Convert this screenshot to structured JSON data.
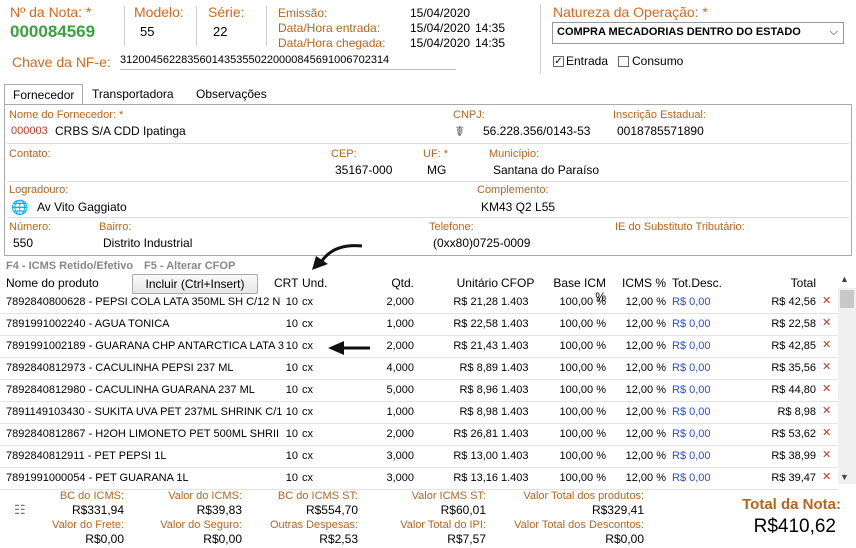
{
  "header": {
    "nota_label": "Nº da Nota: *",
    "nota_value": "000084569",
    "modelo_label": "Modelo:",
    "modelo_value": "55",
    "serie_label": "Série:",
    "serie_value": "22",
    "emissao_label": "Emissão:",
    "emissao_value": "15/04/2020",
    "entrada_label": "Data/Hora entrada:",
    "entrada_date": "15/04/2020",
    "entrada_time": "14:35",
    "chegada_label": "Data/Hora chegada:",
    "chegada_date": "15/04/2020",
    "chegada_time": "14:35",
    "chave_label": "Chave da NF-e:",
    "chave_value": "31200456228356014353550220000845691006702314",
    "natureza_label": "Natureza da Operação: *",
    "natureza_value": "COMPRA MECADORIAS DENTRO DO ESTADO",
    "entrada_chk_label": "Entrada",
    "consumo_chk_label": "Consumo"
  },
  "tabs": [
    "Fornecedor",
    "Transportadora",
    "Observações"
  ],
  "fornecedor": {
    "nome_label": "Nome do Fornecedor: *",
    "code": "000003",
    "nome": "CRBS S/A CDD Ipatinga",
    "cnpj_label": "CNPJ:",
    "cnpj": "56.228.356/0143-53",
    "ie_label": "Inscrição Estadual:",
    "ie": "0018785571890",
    "contato_label": "Contato:",
    "cep_label": "CEP:",
    "cep": "35167-000",
    "uf_label": "UF: *",
    "uf": "MG",
    "municipio_label": "Município:",
    "municipio": "Santana do Paraíso",
    "logradouro_label": "Logradouro:",
    "logradouro": "Av Vito Gaggiato",
    "complemento_label": "Complemento:",
    "complemento": "KM43 Q2 L55",
    "numero_label": "Número:",
    "numero": "550",
    "bairro_label": "Bairro:",
    "bairro": "Distrito Industrial",
    "telefone_label": "Telefone:",
    "telefone": "(0xx80)0725-0009",
    "ie_sub_label": "IE do Substituto Tributário:"
  },
  "shortcuts": {
    "f4": "F4 - ICMS Retido/Efetivo",
    "f5": "F5 - Alterar CFOP",
    "incluir": "Incluir (Ctrl+Insert)"
  },
  "columns": {
    "nome": "Nome do produto",
    "crt": "CRT",
    "und": "Und.",
    "qtd": "Qtd.",
    "unit": "Unitário",
    "cfop": "CFOP",
    "base": "Base ICM %",
    "icms": "ICMS %",
    "desc": "Tot.Desc.",
    "total": "Total"
  },
  "rows": [
    {
      "nome": "7892840800628 - PEPSI COLA LATA 350ML SH C/12 N",
      "crt": "10",
      "und": "cx",
      "qtd": "2,000",
      "unit": "R$ 21,28",
      "cfop": "1.403",
      "base": "100,00 %",
      "icms": "12,00 %",
      "desc": "R$ 0,00",
      "total": "R$ 42,56"
    },
    {
      "nome": "7891991002240 - AGUA TONICA",
      "crt": "10",
      "und": "cx",
      "qtd": "1,000",
      "unit": "R$ 22,58",
      "cfop": "1.403",
      "base": "100,00 %",
      "icms": "12,00 %",
      "desc": "R$ 0,00",
      "total": "R$ 22,58"
    },
    {
      "nome": "7891991002189 - GUARANA CHP ANTARCTICA LATA 3",
      "crt": "10",
      "und": "cx",
      "qtd": "2,000",
      "unit": "R$ 21,43",
      "cfop": "1.403",
      "base": "100,00 %",
      "icms": "12,00 %",
      "desc": "R$ 0,00",
      "total": "R$ 42,85"
    },
    {
      "nome": "7892840812973 - CACULINHA PEPSI 237 ML",
      "crt": "10",
      "und": "cx",
      "qtd": "4,000",
      "unit": "R$ 8,89",
      "cfop": "1.403",
      "base": "100,00 %",
      "icms": "12,00 %",
      "desc": "R$ 0,00",
      "total": "R$ 35,56"
    },
    {
      "nome": "7892840812980 - CACULINHA GUARANA 237 ML",
      "crt": "10",
      "und": "cx",
      "qtd": "5,000",
      "unit": "R$ 8,96",
      "cfop": "1.403",
      "base": "100,00 %",
      "icms": "12,00 %",
      "desc": "R$ 0,00",
      "total": "R$ 44,80"
    },
    {
      "nome": "7891149103430 - SUKITA UVA PET 237ML SHRINK C/1",
      "crt": "10",
      "und": "cx",
      "qtd": "1,000",
      "unit": "R$ 8,98",
      "cfop": "1.403",
      "base": "100,00 %",
      "icms": "12,00 %",
      "desc": "R$ 0,00",
      "total": "R$ 8,98"
    },
    {
      "nome": "7892840812867 - H2OH LIMONETO PET 500ML SHRII",
      "crt": "10",
      "und": "cx",
      "qtd": "2,000",
      "unit": "R$ 26,81",
      "cfop": "1.403",
      "base": "100,00 %",
      "icms": "12,00 %",
      "desc": "R$ 0,00",
      "total": "R$ 53,62"
    },
    {
      "nome": "7892840812911 - PET PEPSI 1L",
      "crt": "10",
      "und": "cx",
      "qtd": "3,000",
      "unit": "R$ 13,00",
      "cfop": "1.403",
      "base": "100,00 %",
      "icms": "12,00 %",
      "desc": "R$ 0,00",
      "total": "R$ 38,99"
    },
    {
      "nome": "7891991000054 - PET GUARANA 1L",
      "crt": "10",
      "und": "cx",
      "qtd": "3,000",
      "unit": "R$ 13,16",
      "cfop": "1.403",
      "base": "100,00 %",
      "icms": "12,00 %",
      "desc": "R$ 0,00",
      "total": "R$ 39,47"
    }
  ],
  "footer": {
    "bc_icms_label": "BC do ICMS:",
    "bc_icms": "R$331,94",
    "valor_icms_label": "Valor do ICMS:",
    "valor_icms": "R$39,83",
    "bc_st_label": "BC do ICMS ST:",
    "bc_st": "R$554,70",
    "valor_st_label": "Valor ICMS ST:",
    "valor_st": "R$60,01",
    "total_prod_label": "Valor Total dos produtos:",
    "total_prod": "R$329,41",
    "frete_label": "Valor do Frete:",
    "frete": "R$0,00",
    "seguro_label": "Valor do Seguro:",
    "seguro": "R$0,00",
    "outras_label": "Outras Despesas:",
    "outras": "R$2,53",
    "ipi_label": "Valor Total do IPI:",
    "ipi": "R$7,57",
    "descontos_label": "Valor Total dos Descontos:",
    "descontos": "R$0,00",
    "total_nota_label": "Total da Nota:",
    "total_nota": "R$410,62"
  }
}
